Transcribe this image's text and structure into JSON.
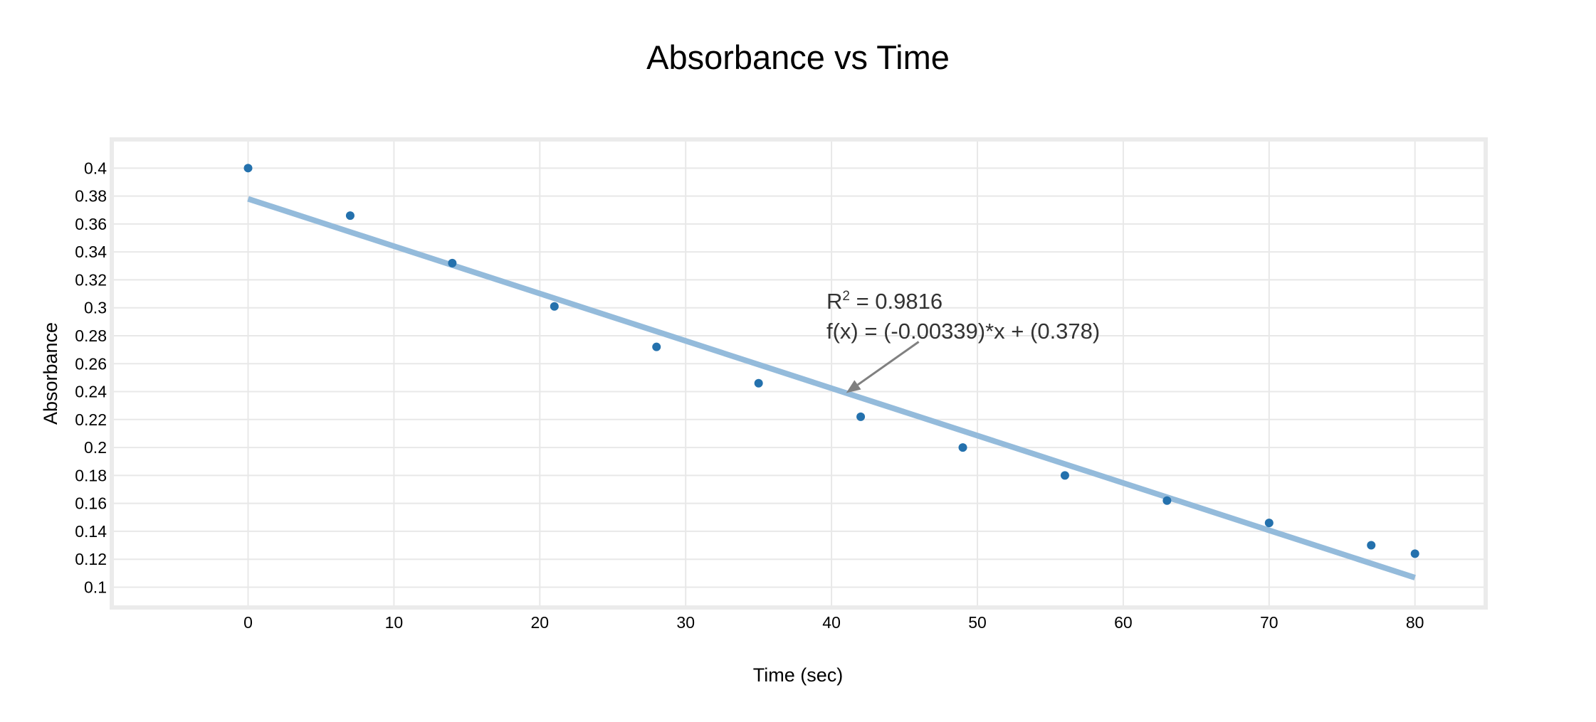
{
  "chart_data": {
    "type": "scatter",
    "title": "Absorbance vs Time",
    "xlabel": "Time (sec)",
    "ylabel": "Absorbance",
    "xlim": [
      -9.2,
      84.7
    ],
    "ylim": [
      0.087,
      0.419
    ],
    "x_ticks": [
      0,
      10,
      20,
      30,
      40,
      50,
      60,
      70,
      80
    ],
    "y_ticks": [
      0.1,
      0.12,
      0.14,
      0.16,
      0.18,
      0.2,
      0.22,
      0.24,
      0.26,
      0.28,
      0.3,
      0.32,
      0.34,
      0.36,
      0.38,
      0.4
    ],
    "grid": true,
    "legend": "none",
    "series": [
      {
        "x": [
          0,
          7,
          14,
          21,
          28,
          35,
          42,
          49,
          56,
          63,
          70,
          77,
          80
        ],
        "y": [
          0.4,
          0.366,
          0.332,
          0.301,
          0.272,
          0.246,
          0.222,
          0.2,
          0.18,
          0.162,
          0.146,
          0.13,
          0.124
        ]
      }
    ],
    "trendline": {
      "slope": -0.00339,
      "intercept": 0.378,
      "x_range": [
        0,
        80
      ]
    },
    "annotation": {
      "r2_prefix": "R",
      "r2_sup": "2",
      "r2_value": " = 0.9816",
      "equation": "f(x) = (-0.00339)*x + (0.378)",
      "arrow_target": [
        41,
        0.239
      ]
    },
    "colors": {
      "points": "#2471ad",
      "trendline": "#94bbdb",
      "grid": "#e8e8e8",
      "frame": "#ebebeb",
      "arrow": "#808080",
      "annotation_text": "#333333"
    }
  }
}
